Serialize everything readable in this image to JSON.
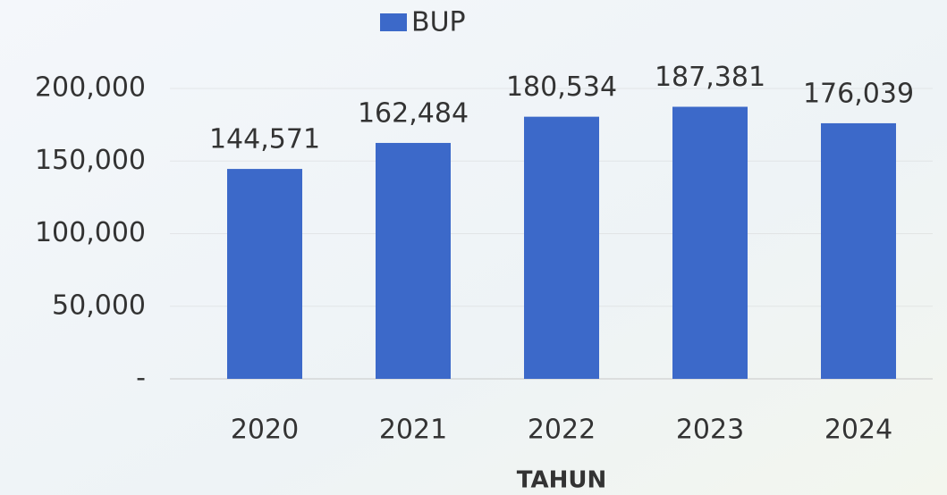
{
  "chart_data": {
    "type": "bar",
    "x_label": "TAHUN",
    "categories": [
      "2020",
      "2021",
      "2022",
      "2023",
      "2024"
    ],
    "series": [
      {
        "name": "BUP",
        "color": "#3c69c9",
        "values": [
          144571,
          162484,
          180534,
          187381,
          176039
        ],
        "value_labels": [
          "144,571",
          "162,484",
          "180,534",
          "187,381",
          "176,039"
        ]
      }
    ],
    "ylim": [
      0,
      200000
    ],
    "yticks": [
      {
        "value": 0,
        "label": "-"
      },
      {
        "value": 50000,
        "label": "50,000"
      },
      {
        "value": 100000,
        "label": "100,000"
      },
      {
        "value": 150000,
        "label": "150,000"
      },
      {
        "value": 200000,
        "label": "200,000"
      }
    ],
    "grid": true,
    "legend": "top"
  }
}
